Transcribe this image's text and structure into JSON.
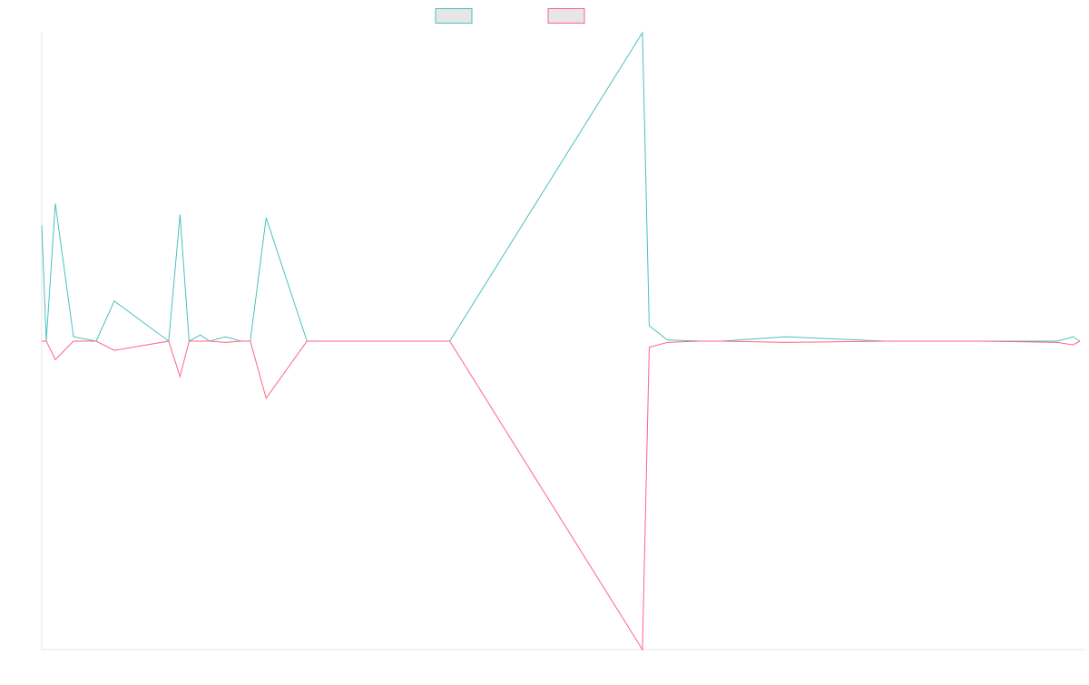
{
  "chart_data": {
    "type": "line",
    "title": "",
    "xlabel": "",
    "ylabel": "",
    "grid": false,
    "legend_position": "top-center",
    "ylim": [
      -1,
      1
    ],
    "x": [
      0,
      2,
      6,
      14,
      24,
      32,
      56,
      61,
      65,
      70,
      74,
      81,
      88,
      92,
      99,
      117,
      180,
      265,
      268,
      276,
      290,
      300,
      328,
      372,
      393,
      415,
      448,
      455,
      458
    ],
    "series": [
      {
        "name": "",
        "color": "#4bc0c0",
        "fill": "#e6e6e6",
        "values": [
          0.375,
          0,
          0.446,
          0.014,
          0,
          0.13,
          0,
          0.41,
          0,
          0.02,
          0,
          0.014,
          0,
          0,
          0.4,
          0,
          0,
          1.0,
          0.05,
          0.004,
          0,
          0,
          0.014,
          0,
          0,
          0,
          0,
          0.014,
          0
        ]
      },
      {
        "name": "",
        "color": "#ff6384",
        "fill": "#e6e6e6",
        "values": [
          0,
          0,
          -0.06,
          0,
          0,
          -0.03,
          0,
          -0.115,
          0,
          0,
          0,
          -0.004,
          0,
          0,
          -0.185,
          0,
          0,
          -1.0,
          -0.02,
          -0.004,
          0,
          0,
          -0.004,
          0,
          0,
          0,
          -0.004,
          -0.012,
          0
        ]
      }
    ]
  }
}
